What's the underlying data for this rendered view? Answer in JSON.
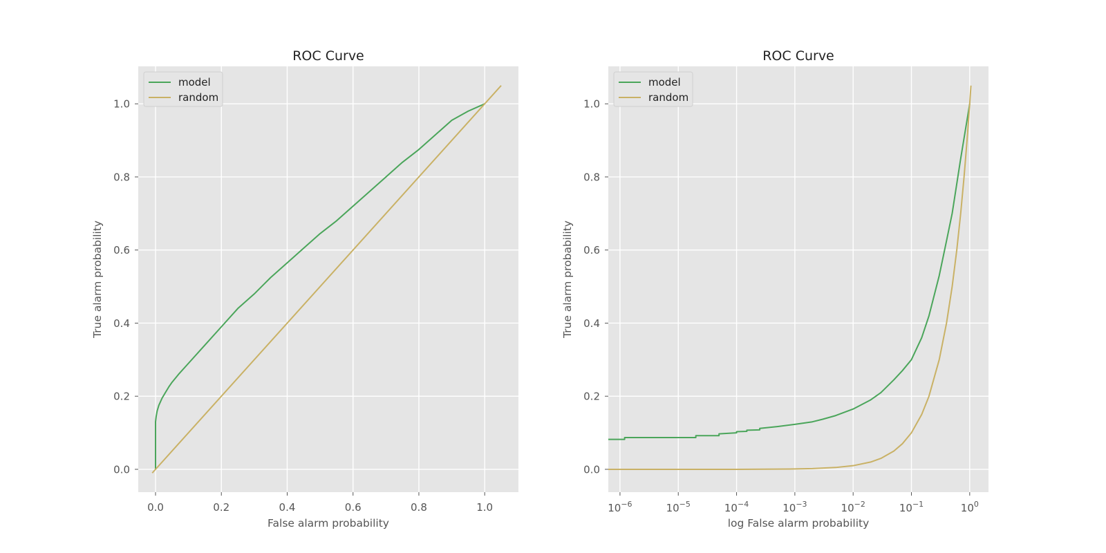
{
  "chart_data": [
    {
      "type": "line",
      "title": "ROC Curve",
      "xlabel": "False alarm probability",
      "ylabel": "True alarm probability",
      "xscale": "linear",
      "xlim": [
        -0.0525,
        1.1025
      ],
      "ylim": [
        -0.0625,
        1.1025
      ],
      "xticks": [
        0.0,
        0.2,
        0.4,
        0.6,
        0.8,
        1.0
      ],
      "xtick_labels": [
        "0.0",
        "0.2",
        "0.4",
        "0.6",
        "0.8",
        "1.0"
      ],
      "yticks": [
        0.0,
        0.2,
        0.4,
        0.6,
        0.8,
        1.0
      ],
      "ytick_labels": [
        "0.0",
        "0.2",
        "0.4",
        "0.6",
        "0.8",
        "1.0"
      ],
      "grid": true,
      "legend_position": "top-left",
      "series": [
        {
          "name": "model",
          "color": "#4aa55a",
          "x": [
            0.0,
            0.0,
            0.0,
            0.002,
            0.005,
            0.01,
            0.02,
            0.03,
            0.04,
            0.05,
            0.07,
            0.1,
            0.15,
            0.2,
            0.25,
            0.3,
            0.35,
            0.4,
            0.45,
            0.5,
            0.55,
            0.6,
            0.65,
            0.7,
            0.75,
            0.8,
            0.85,
            0.9,
            0.95,
            1.0
          ],
          "y": [
            0.0,
            0.08,
            0.13,
            0.145,
            0.16,
            0.175,
            0.195,
            0.21,
            0.225,
            0.238,
            0.26,
            0.29,
            0.34,
            0.39,
            0.44,
            0.48,
            0.525,
            0.565,
            0.605,
            0.645,
            0.68,
            0.72,
            0.76,
            0.8,
            0.84,
            0.875,
            0.915,
            0.955,
            0.98,
            1.0
          ]
        },
        {
          "name": "random",
          "color": "#c9b165",
          "x": [
            -0.01,
            1.05
          ],
          "y": [
            -0.01,
            1.05
          ]
        }
      ]
    },
    {
      "type": "line",
      "title": "ROC Curve",
      "xlabel": "log False alarm probability",
      "ylabel": "True alarm probability",
      "xscale": "log",
      "xlim": [
        6.3e-07,
        2.1
      ],
      "ylim": [
        -0.0625,
        1.1025
      ],
      "xticks": [
        1e-06,
        1e-05,
        0.0001,
        0.001,
        0.01,
        0.1,
        1
      ],
      "xtick_labels": [
        {
          "base": "10",
          "exp": "−6"
        },
        {
          "base": "10",
          "exp": "−5"
        },
        {
          "base": "10",
          "exp": "−4"
        },
        {
          "base": "10",
          "exp": "−3"
        },
        {
          "base": "10",
          "exp": "−2"
        },
        {
          "base": "10",
          "exp": "−1"
        },
        {
          "base": "10",
          "exp": "0"
        }
      ],
      "yticks": [
        0.0,
        0.2,
        0.4,
        0.6,
        0.8,
        1.0
      ],
      "ytick_labels": [
        "0.0",
        "0.2",
        "0.4",
        "0.6",
        "0.8",
        "1.0"
      ],
      "grid": true,
      "legend_position": "top-left",
      "series": [
        {
          "name": "model",
          "color": "#4aa55a",
          "x": [
            6.3e-07,
            1.2e-06,
            1.2e-06,
            2e-05,
            2e-05,
            5e-05,
            5e-05,
            0.0001,
            0.0001,
            0.00015,
            0.00015,
            0.00025,
            0.00025,
            0.0005,
            0.001,
            0.002,
            0.003,
            0.005,
            0.01,
            0.02,
            0.03,
            0.05,
            0.07,
            0.1,
            0.15,
            0.2,
            0.3,
            0.4,
            0.5,
            0.7,
            1.0
          ],
          "y": [
            0.082,
            0.082,
            0.087,
            0.087,
            0.092,
            0.092,
            0.097,
            0.1,
            0.103,
            0.104,
            0.107,
            0.108,
            0.112,
            0.117,
            0.123,
            0.13,
            0.137,
            0.147,
            0.165,
            0.19,
            0.21,
            0.245,
            0.27,
            0.3,
            0.36,
            0.42,
            0.53,
            0.625,
            0.7,
            0.85,
            1.0
          ]
        },
        {
          "name": "random",
          "color": "#c9b165",
          "x": [
            6.3e-07,
            1e-05,
            0.0001,
            0.001,
            0.002,
            0.005,
            0.01,
            0.02,
            0.03,
            0.05,
            0.07,
            0.1,
            0.15,
            0.2,
            0.3,
            0.4,
            0.5,
            0.6,
            0.7,
            0.8,
            0.9,
            1.0,
            1.05
          ],
          "y": [
            0.0,
            0.0,
            0.0,
            0.001,
            0.002,
            0.005,
            0.01,
            0.02,
            0.03,
            0.05,
            0.07,
            0.1,
            0.15,
            0.2,
            0.3,
            0.4,
            0.5,
            0.6,
            0.7,
            0.8,
            0.9,
            1.0,
            1.05
          ]
        }
      ]
    }
  ]
}
